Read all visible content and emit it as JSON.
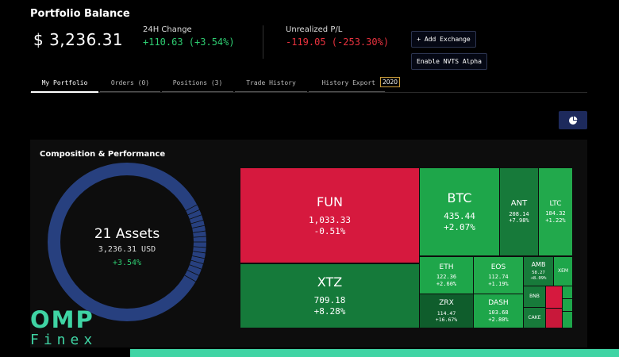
{
  "header": {
    "title": "Portfolio Balance",
    "balance": "$ 3,236.31",
    "change_label": "24H Change",
    "change_value": "+110.63 (+3.54%)",
    "pl_label": "Unrealized P/L",
    "pl_value": "-119.05 (-253.30%)",
    "add_exchange": "+ Add Exchange",
    "enable_alpha": "Enable NVTS Alpha"
  },
  "tabs": [
    {
      "label": "My Portfolio"
    },
    {
      "label": "Orders (0)"
    },
    {
      "label": "Positions (3)"
    },
    {
      "label": "Trade History"
    },
    {
      "label": "History Export"
    }
  ],
  "tab_badge": "2020",
  "panel": {
    "title": "Composition & Performance",
    "assets": "21 Assets",
    "total": "3,236.31 USD",
    "change": "+3.54%"
  },
  "tiles": [
    {
      "sym": "FUN",
      "val": "1,033.33",
      "chg": "-0.51%",
      "color": "#d6193e"
    },
    {
      "sym": "XTZ",
      "val": "709.18",
      "chg": "+8.28%",
      "color": "#157a3a"
    },
    {
      "sym": "BTC",
      "val": "435.44",
      "chg": "+2.07%",
      "color": "#1ea64a"
    },
    {
      "sym": "ANT",
      "val": "208.14",
      "chg": "+7.98%",
      "color": "#177a3a"
    },
    {
      "sym": "LTC",
      "val": "184.32",
      "chg": "+1.22%",
      "color": "#22a94c"
    },
    {
      "sym": "ETH",
      "val": "122.36",
      "chg": "+2.60%",
      "color": "#1ea64a"
    },
    {
      "sym": "EOS",
      "val": "112.74",
      "chg": "+1.19%",
      "color": "#22a94c"
    },
    {
      "sym": "AMB",
      "val": "58.27",
      "chg": "+8.09%",
      "color": "#177a3a"
    },
    {
      "sym": "XEM",
      "val": "",
      "chg": "",
      "color": "#1ea64a"
    },
    {
      "sym": "ZRX",
      "val": "114.47",
      "chg": "+16.67%",
      "color": "#0f5d2c"
    },
    {
      "sym": "DASH",
      "val": "103.68",
      "chg": "+2.80%",
      "color": "#1ea64a"
    },
    {
      "sym": "BNB",
      "val": "",
      "chg": "",
      "color": "#177a3a"
    },
    {
      "sym": "CAKE",
      "val": "",
      "chg": "",
      "color": "#177a3a"
    },
    {
      "sym": "",
      "val": "",
      "chg": "",
      "color": "#d6193e"
    },
    {
      "sym": "",
      "val": "",
      "chg": "",
      "color": "#c8183a"
    },
    {
      "sym": "",
      "val": "",
      "chg": "",
      "color": "#1ea64a"
    },
    {
      "sym": "",
      "val": "",
      "chg": "",
      "color": "#1ea64a"
    },
    {
      "sym": "",
      "val": "",
      "chg": "",
      "color": "#1ea64a"
    }
  ],
  "colors": {
    "accent": "#1d2a5c",
    "positive": "#2ecc71",
    "negative": "#e8323e",
    "brand": "#3fd4a4",
    "donut": "#27407f"
  },
  "watermark": {
    "line1": "OMP",
    "line2": "Finex"
  }
}
